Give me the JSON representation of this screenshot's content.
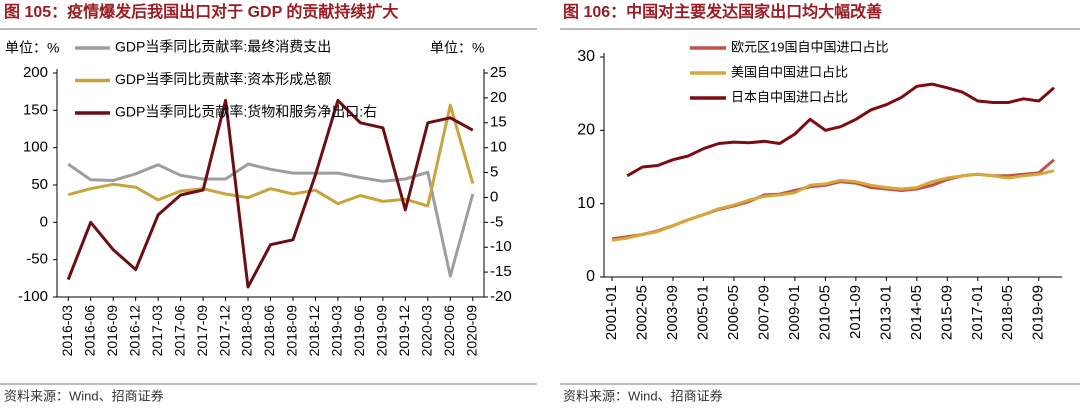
{
  "chart_data": [
    {
      "type": "line",
      "title": "图 105：疫情爆发后我国出口对于 GDP 的贡献持续扩大",
      "source": "资料来源：Wind、招商证券",
      "y_unit": "单位：%",
      "y2_unit": "单位：%",
      "legend": "upper left",
      "categories": [
        "2016-03",
        "2016-06",
        "2016-09",
        "2016-12",
        "2017-03",
        "2017-06",
        "2017-09",
        "2017-12",
        "2018-03",
        "2018-06",
        "2018-09",
        "2018-12",
        "2019-03",
        "2019-06",
        "2019-09",
        "2019-12",
        "2020-03",
        "2020-06",
        "2020-09"
      ],
      "ylim": [
        -100,
        200
      ],
      "yticks": [
        -100,
        -50,
        0,
        50,
        100,
        150,
        200
      ],
      "y2lim": [
        -20,
        25
      ],
      "y2ticks": [
        -20,
        -15,
        -10,
        -5,
        0,
        5,
        10,
        15,
        20,
        25
      ],
      "y2_negative_color": "#e00000",
      "series": [
        {
          "name": "GDP当季同比贡献率:最终消费支出",
          "color": "#9e9e9e",
          "values": [
            78,
            57,
            56,
            65,
            77,
            63,
            58,
            58,
            78,
            71,
            66,
            66,
            66,
            60,
            55,
            58,
            67,
            -72,
            38
          ]
        },
        {
          "name": "GDP当季同比贡献率:资本形成总额",
          "color": "#c9a43c",
          "values": [
            37,
            45,
            51,
            47,
            30,
            42,
            45,
            38,
            33,
            45,
            38,
            43,
            25,
            36,
            28,
            31,
            22,
            157,
            52
          ]
        },
        {
          "name": "GDP当季同比贡献率:货物和服务净出口:右",
          "color": "#6b0f14",
          "axis": "y2",
          "values": [
            -16.5,
            -5,
            -10.5,
            -14.5,
            -3.5,
            0.5,
            1.5,
            19.5,
            -18,
            -9.5,
            -8.5,
            4.5,
            19.5,
            15,
            14,
            -2.5,
            15,
            16,
            13.5
          ]
        }
      ]
    },
    {
      "type": "line",
      "title": "图 106：中国对主要发达国家出口均大幅改善",
      "source": "资料来源：Wind、招商证券",
      "legend": "upper center",
      "x": [
        "2001-01",
        "2001-09",
        "2002-05",
        "2003-01",
        "2003-09",
        "2004-05",
        "2005-01",
        "2005-09",
        "2006-05",
        "2007-01",
        "2007-09",
        "2008-05",
        "2009-01",
        "2009-09",
        "2010-05",
        "2011-01",
        "2011-09",
        "2012-05",
        "2013-01",
        "2013-09",
        "2014-05",
        "2015-01",
        "2015-09",
        "2016-05",
        "2017-01",
        "2017-09",
        "2018-05",
        "2019-01",
        "2019-09",
        "2020-05"
      ],
      "xticks": [
        "2001-01",
        "2002-05",
        "2003-09",
        "2005-01",
        "2006-05",
        "2007-09",
        "2009-01",
        "2010-05",
        "2011-09",
        "2013-01",
        "2014-05",
        "2015-09",
        "2017-01",
        "2018-05",
        "2019-09"
      ],
      "ylim": [
        0,
        30
      ],
      "yticks": [
        0,
        10,
        20,
        30
      ],
      "series": [
        {
          "name": "欧元区19国自中国进口占比",
          "color": "#c0504d",
          "values": [
            5.2,
            5.5,
            5.8,
            6.3,
            7.0,
            7.8,
            8.5,
            9.2,
            9.7,
            10.3,
            11.2,
            11.3,
            11.8,
            12.3,
            12.5,
            13.0,
            12.8,
            12.2,
            12.0,
            11.8,
            12.0,
            12.5,
            13.3,
            13.8,
            14.0,
            13.8,
            13.8,
            14.0,
            14.2,
            16.0
          ]
        },
        {
          "name": "美国自中国进口占比",
          "color": "#d4a83a",
          "values": [
            5.0,
            5.3,
            5.8,
            6.2,
            7.0,
            7.8,
            8.5,
            9.3,
            9.8,
            10.5,
            11.0,
            11.2,
            11.5,
            12.5,
            12.7,
            13.2,
            13.0,
            12.5,
            12.2,
            12.0,
            12.2,
            13.0,
            13.5,
            13.8,
            14.0,
            13.8,
            13.5,
            13.8,
            14.0,
            14.5
          ]
        },
        {
          "name": "日本自中国进口占比",
          "color": "#7b0c12",
          "values": [
            null,
            13.8,
            15.0,
            15.2,
            16.0,
            16.5,
            17.5,
            18.2,
            18.4,
            18.3,
            18.5,
            18.2,
            19.5,
            21.5,
            20.0,
            20.5,
            21.5,
            22.8,
            23.5,
            24.5,
            26.0,
            26.3,
            25.8,
            25.2,
            24.0,
            23.8,
            23.8,
            24.3,
            24.0,
            25.8
          ]
        }
      ]
    }
  ]
}
